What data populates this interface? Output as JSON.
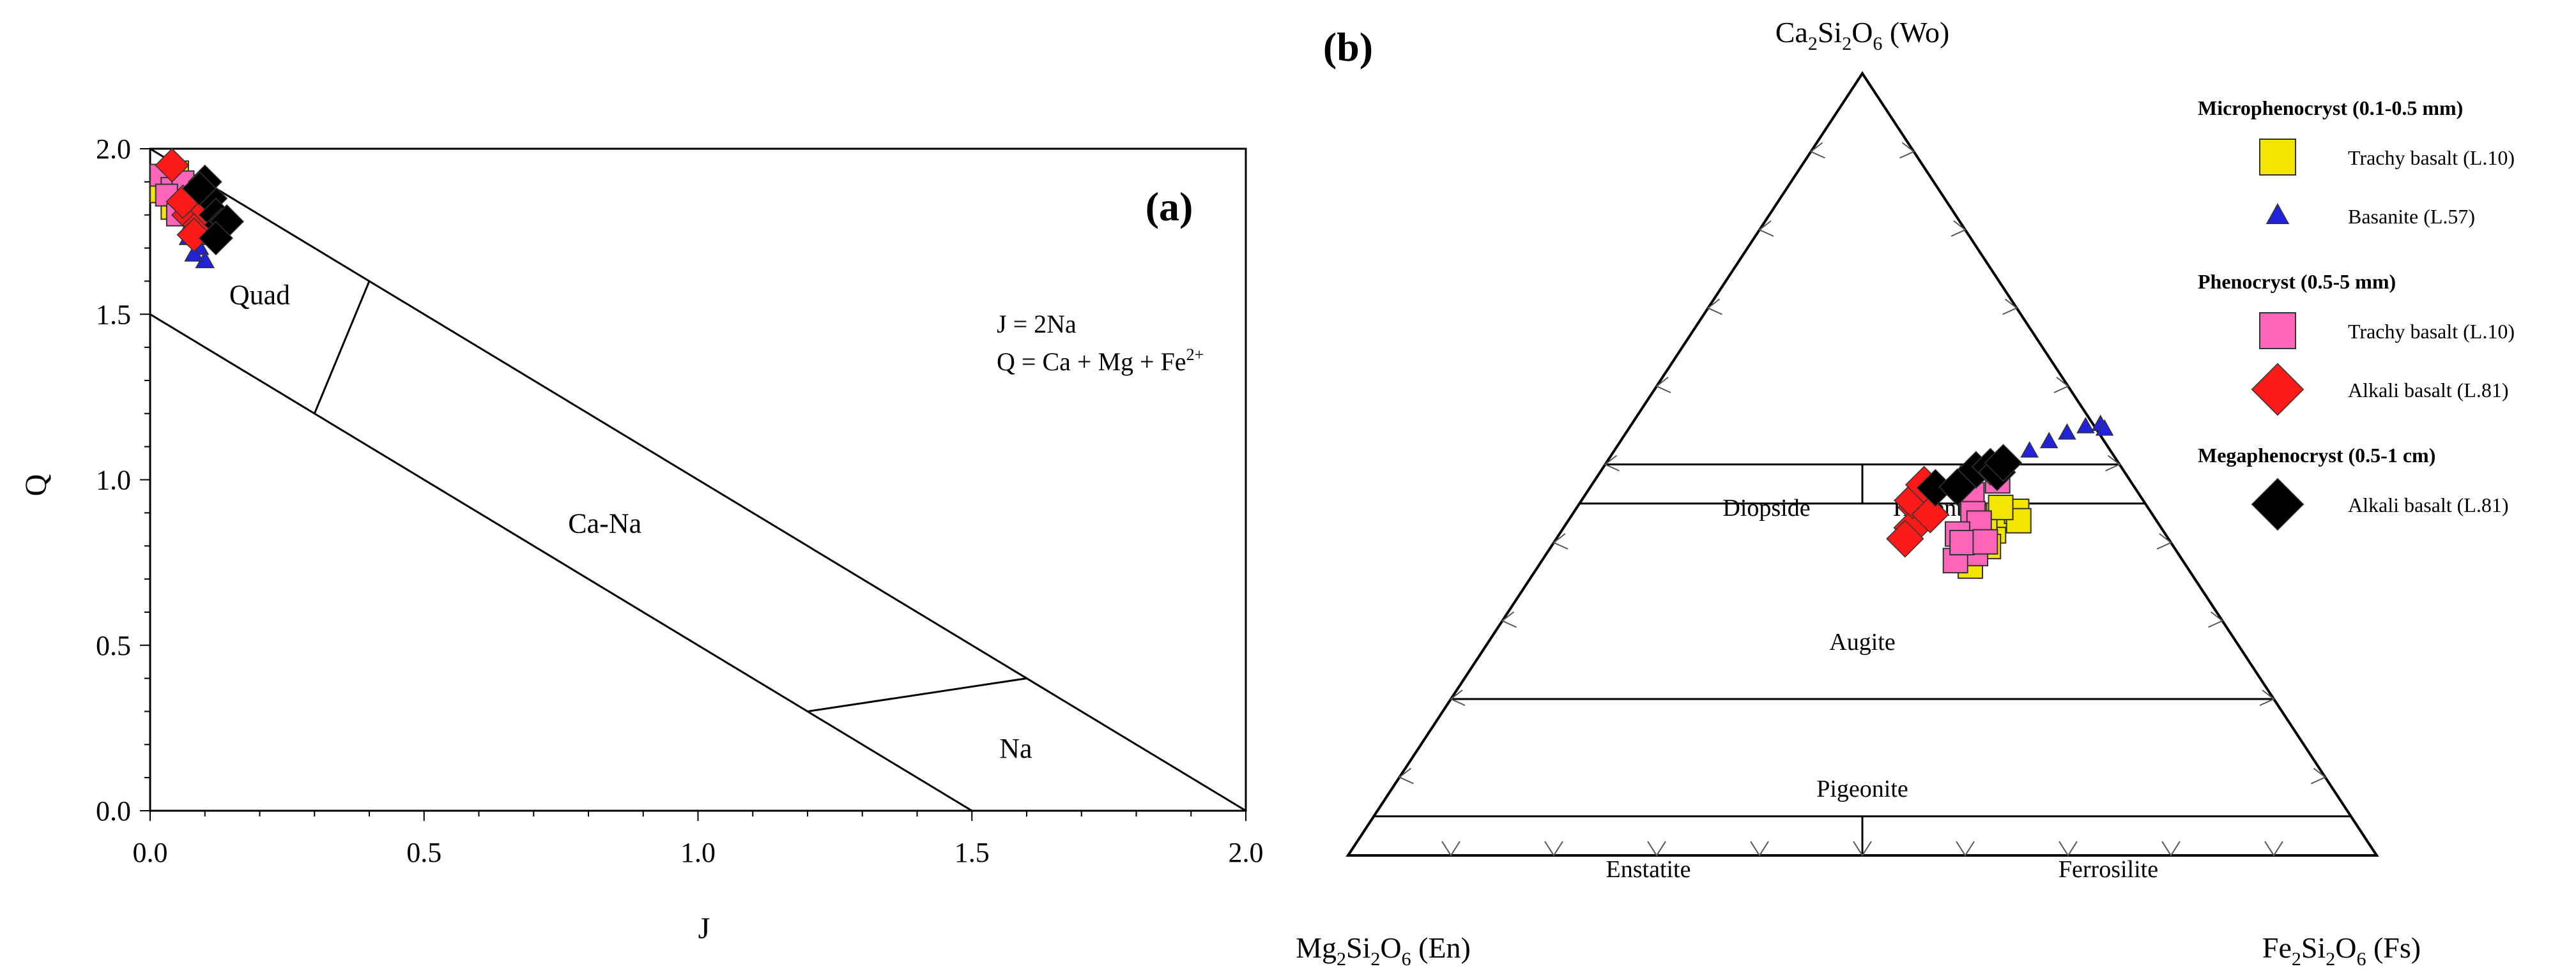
{
  "colors": {
    "trachy_micro": "#f2e600",
    "basanite": "#2222dd",
    "trachy_pheno": "#ff66bb",
    "alkali_pheno": "#ff1a1a",
    "alkali_mega": "#000000"
  },
  "chart_data": [
    {
      "type": "scatter",
      "panel_label": "(a)",
      "xlabel": "J",
      "ylabel": "Q",
      "xlim": [
        0,
        2
      ],
      "ylim": [
        0,
        2
      ],
      "xticks": [
        "0.0",
        "0.5",
        "1.0",
        "1.5",
        "2.0"
      ],
      "yticks": [
        "0.0",
        "0.5",
        "1.0",
        "1.5",
        "2.0"
      ],
      "grid": false,
      "field_labels": [
        {
          "text": "Quad",
          "x": 0.2,
          "y": 1.53
        },
        {
          "text": "Ca-Na",
          "x": 0.83,
          "y": 0.84
        },
        {
          "text": "Na",
          "x": 1.58,
          "y": 0.16
        }
      ],
      "field_lines": [
        [
          [
            0,
            2.0
          ],
          [
            2.0,
            0
          ]
        ],
        [
          [
            0,
            1.5
          ],
          [
            1.5,
            0
          ]
        ],
        [
          [
            0.3,
            1.2
          ],
          [
            0.4,
            1.6
          ]
        ],
        [
          [
            1.2,
            0.3
          ],
          [
            1.6,
            0.4
          ]
        ]
      ],
      "equations": [
        "J = 2Na",
        "Q = Ca + Mg + Fe"
      ],
      "equation_superscript": "2+",
      "series": [
        {
          "key": "trachy_micro",
          "marker": "square",
          "points": [
            [
              0.03,
              1.9
            ],
            [
              0.05,
              1.86
            ],
            [
              0.04,
              1.82
            ],
            [
              0.06,
              1.88
            ],
            [
              0.08,
              1.84
            ],
            [
              0.05,
              1.93
            ],
            [
              0.02,
              1.87
            ]
          ]
        },
        {
          "key": "basanite",
          "marker": "triangle",
          "points": [
            [
              0.04,
              1.85
            ],
            [
              0.06,
              1.79
            ],
            [
              0.07,
              1.73
            ],
            [
              0.09,
              1.7
            ],
            [
              0.1,
              1.66
            ],
            [
              0.08,
              1.68
            ],
            [
              0.05,
              1.82
            ],
            [
              0.11,
              1.73
            ],
            [
              0.07,
              1.76
            ]
          ]
        },
        {
          "key": "trachy_pheno",
          "marker": "square",
          "points": [
            [
              0.02,
              1.92
            ],
            [
              0.04,
              1.88
            ],
            [
              0.06,
              1.9
            ],
            [
              0.08,
              1.85
            ],
            [
              0.03,
              1.86
            ],
            [
              0.07,
              1.82
            ],
            [
              0.05,
              1.8
            ],
            [
              0.09,
              1.84
            ],
            [
              0.1,
              1.78
            ]
          ]
        },
        {
          "key": "alkali_pheno",
          "marker": "diamond",
          "points": [
            [
              0.04,
              1.95
            ],
            [
              0.07,
              1.8
            ],
            [
              0.09,
              1.77
            ],
            [
              0.1,
              1.82
            ],
            [
              0.08,
              1.74
            ],
            [
              0.06,
              1.84
            ]
          ]
        },
        {
          "key": "alkali_mega",
          "marker": "diamond",
          "points": [
            [
              0.11,
              1.85
            ],
            [
              0.12,
              1.8
            ],
            [
              0.13,
              1.77
            ],
            [
              0.1,
              1.9
            ],
            [
              0.14,
              1.78
            ],
            [
              0.12,
              1.73
            ],
            [
              0.09,
              1.88
            ]
          ]
        }
      ]
    },
    {
      "type": "scatter",
      "subtype": "ternary",
      "panel_label": "(b)",
      "vertices": {
        "top": "Ca2Si2O6 (Wo)",
        "left": "Mg2Si2O6 (En)",
        "right": "Fe2Si2O6 (Fs)"
      },
      "vertex_parts": {
        "top": [
          "Ca",
          "2",
          "Si",
          "2",
          "O",
          "6",
          " (Wo)"
        ],
        "left": [
          "Mg",
          "2",
          "Si",
          "2",
          "O",
          "6",
          " (En)"
        ],
        "right": [
          "Fe",
          "2",
          "Si",
          "2",
          "O",
          "6",
          " (Fs)"
        ]
      },
      "wo_boundaries": [
        50,
        45,
        20,
        5
      ],
      "field_labels": {
        "diopside": "Diopside",
        "hedenbergite": "Hedenbergite",
        "augite": "Augite",
        "pigeonite": "Pigeonite",
        "enstatite": "Enstatite",
        "ferrosilite": "Ferrosilite"
      },
      "series": [
        {
          "key": "trachy_micro",
          "marker": "square",
          "points": [
            [
              40.6,
              40.7
            ],
            [
              41.0,
              38.8
            ],
            [
              42.0,
              41.5
            ],
            [
              41.5,
              43.5
            ],
            [
              42.5,
              39.5
            ],
            [
              43.0,
              44.0
            ],
            [
              42.0,
              37.0
            ],
            [
              40.8,
              42.2
            ],
            [
              43.8,
              42.8
            ],
            [
              41.2,
              44.5
            ]
          ]
        },
        {
          "key": "basanite",
          "marker": "triangle",
          "points": [
            [
              40.4,
              51.7
            ],
            [
              41.7,
              52.9
            ],
            [
              42.9,
              54.0
            ],
            [
              44.3,
              54.8
            ],
            [
              45.6,
              55.1
            ],
            [
              46.3,
              54.5
            ],
            [
              35.2,
              48.7
            ],
            [
              38.9,
              50.5
            ]
          ]
        },
        {
          "key": "trachy_pheno",
          "marker": "square",
          "points": [
            [
              36.5,
              47.0
            ],
            [
              37.6,
              46.1
            ],
            [
              39.2,
              47.9
            ],
            [
              38.9,
              43.7
            ],
            [
              40.1,
              42.5
            ],
            [
              38.7,
              41.1
            ],
            [
              41.7,
              38.6
            ],
            [
              40.2,
              37.7
            ],
            [
              39.7,
              40.0
            ],
            [
              41.9,
              40.1
            ]
          ]
        },
        {
          "key": "alkali_pheno",
          "marker": "diamond",
          "points": [
            [
              33.0,
              44.5
            ],
            [
              33.9,
              41.9
            ],
            [
              32.2,
              45.4
            ],
            [
              32.3,
              47.4
            ],
            [
              33.9,
              40.5
            ],
            [
              34.8,
              43.6
            ]
          ]
        },
        {
          "key": "alkali_mega",
          "marker": "diamond",
          "points": [
            [
              36.4,
              49.3
            ],
            [
              37.6,
              49.7
            ],
            [
              38.6,
              49.0
            ],
            [
              33.6,
              47.0
            ],
            [
              35.7,
              47.1
            ],
            [
              38.6,
              50.2
            ]
          ]
        }
      ]
    }
  ],
  "legend": {
    "groups": [
      {
        "title": "Microphenocryst (0.1-0.5 mm)",
        "items": [
          {
            "key": "trachy_micro",
            "marker": "square",
            "label": "Trachy basalt (L.10)"
          },
          {
            "key": "basanite",
            "marker": "triangle",
            "label": "Basanite (L.57)"
          }
        ]
      },
      {
        "title": "Phenocryst (0.5-5 mm)",
        "items": [
          {
            "key": "trachy_pheno",
            "marker": "square",
            "label": "Trachy basalt (L.10)"
          },
          {
            "key": "alkali_pheno",
            "marker": "diamond",
            "label": "Alkali basalt (L.81)"
          }
        ]
      },
      {
        "title": "Megaphenocryst (0.5-1 cm)",
        "items": [
          {
            "key": "alkali_mega",
            "marker": "diamond",
            "label": "Alkali basalt (L.81)"
          }
        ]
      }
    ]
  }
}
